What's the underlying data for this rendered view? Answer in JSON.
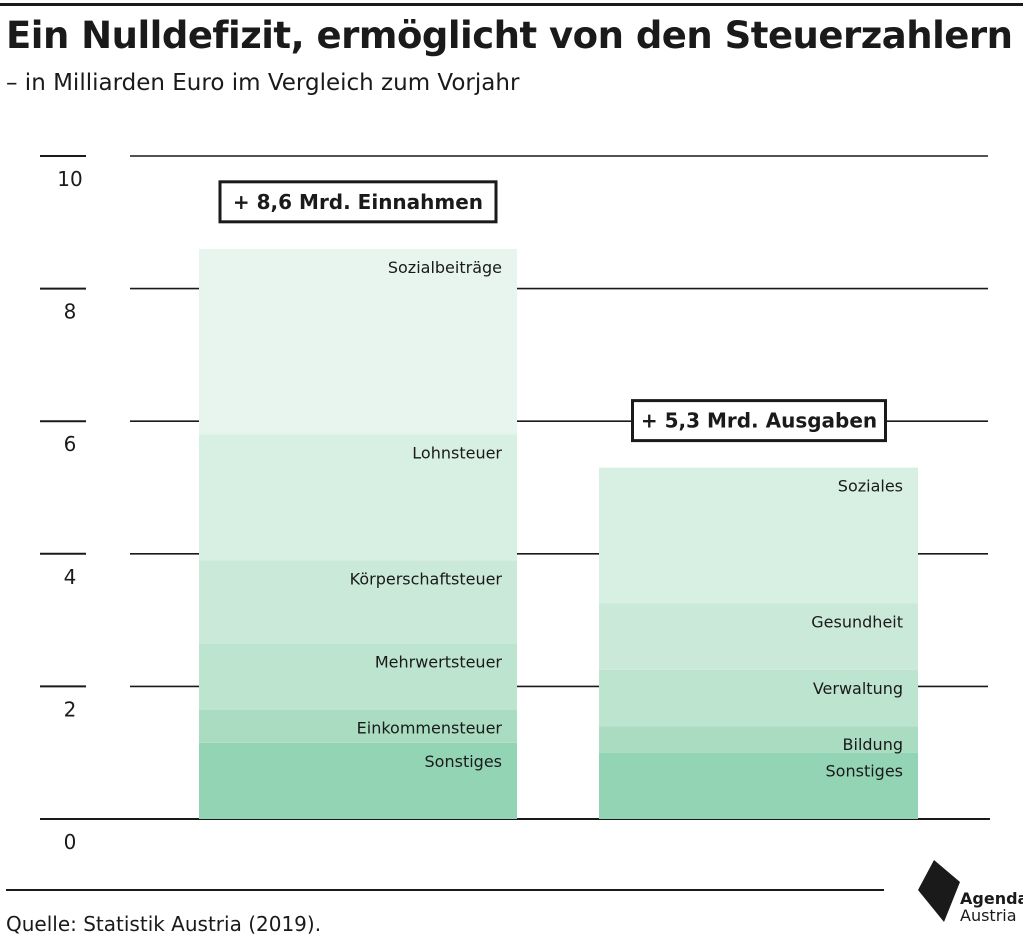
{
  "title": "Ein Nulldefizit, ermöglicht von den Steuerzahlern",
  "subtitle": "– in Milliarden Euro im Vergleich zum Vorjahr",
  "source": "Quelle: Statistik Austria (2019).",
  "logo": {
    "line1": "Agenda",
    "line2": "Austria"
  },
  "colors": {
    "shade1": "#e8f5ee",
    "shade2": "#d8efe3",
    "shade3": "#cbe9d9",
    "shade4": "#bce4cf",
    "shade5": "#a9dcc1",
    "shade6": "#93d4b5",
    "text": "#1a1a1a"
  },
  "chart_data": {
    "type": "bar",
    "stacked": true,
    "ylim": [
      0,
      10
    ],
    "yticks": [
      "0",
      "2",
      "4",
      "6",
      "8",
      "10"
    ],
    "grid": true,
    "bars": [
      {
        "label": "+ 8,6 Mrd. Einnahmen",
        "total": 8.6,
        "segments": [
          {
            "name": "Sonstiges",
            "value": 1.15
          },
          {
            "name": "Einkommensteuer",
            "value": 0.5
          },
          {
            "name": "Mehrwertsteuer",
            "value": 1.0
          },
          {
            "name": "Körperschaftsteuer",
            "value": 1.25
          },
          {
            "name": "Lohnsteuer",
            "value": 1.9
          },
          {
            "name": "Sozialbeiträge",
            "value": 2.8
          }
        ]
      },
      {
        "label": "+ 5,3 Mrd. Ausgaben",
        "total": 5.3,
        "segments": [
          {
            "name": "Sonstiges",
            "value": 1.0
          },
          {
            "name": "Bildung",
            "value": 0.4
          },
          {
            "name": "Verwaltung",
            "value": 0.85
          },
          {
            "name": "Gesundheit",
            "value": 1.0
          },
          {
            "name": "Soziales",
            "value": 2.05
          }
        ]
      }
    ]
  }
}
